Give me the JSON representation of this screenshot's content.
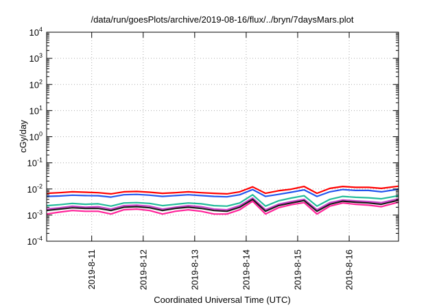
{
  "chart_data": {
    "type": "line",
    "title": "/data/run/goesPlots/archive/2019-08-16/flux/../bryn/7daysMars.plot",
    "xlabel": "Coordinated Universal Time (UTC)",
    "ylabel": "cGy/day",
    "yscale": "log",
    "ylim": [
      0.0001,
      10000
    ],
    "y_ticks": [
      {
        "base": "10",
        "exp": "-4"
      },
      {
        "base": "10",
        "exp": "-3"
      },
      {
        "base": "10",
        "exp": "-2"
      },
      {
        "base": "10",
        "exp": "-1"
      },
      {
        "base": "10",
        "exp": "0"
      },
      {
        "base": "10",
        "exp": "1"
      },
      {
        "base": "10",
        "exp": "2"
      },
      {
        "base": "10",
        "exp": "3"
      },
      {
        "base": "10",
        "exp": "4"
      }
    ],
    "x_range": [
      "2019-08-10 03:00",
      "2019-08-16 23:00"
    ],
    "x_ticks": [
      "2019-8-11",
      "2019-8-12",
      "2019-8-13",
      "2019-8-14",
      "2019-8-15",
      "2019-8-16"
    ],
    "grid": true,
    "legend": "none",
    "x": [
      "2019-08-10 03:00",
      "2019-08-10 09:00",
      "2019-08-10 15:00",
      "2019-08-10 21:00",
      "2019-08-11 03:00",
      "2019-08-11 09:00",
      "2019-08-11 15:00",
      "2019-08-11 21:00",
      "2019-08-12 03:00",
      "2019-08-12 09:00",
      "2019-08-12 15:00",
      "2019-08-12 21:00",
      "2019-08-13 03:00",
      "2019-08-13 09:00",
      "2019-08-13 15:00",
      "2019-08-13 21:00",
      "2019-08-14 03:00",
      "2019-08-14 09:00",
      "2019-08-14 15:00",
      "2019-08-14 21:00",
      "2019-08-15 03:00",
      "2019-08-15 09:00",
      "2019-08-15 15:00",
      "2019-08-15 21:00",
      "2019-08-16 03:00",
      "2019-08-16 09:00",
      "2019-08-16 15:00",
      "2019-08-16 23:00"
    ],
    "series": [
      {
        "color": "#ff0000",
        "values": [
          0.0068,
          0.0072,
          0.0078,
          0.0075,
          0.0072,
          0.0065,
          0.0078,
          0.008,
          0.0075,
          0.0068,
          0.0072,
          0.0078,
          0.0072,
          0.0068,
          0.0065,
          0.0078,
          0.012,
          0.0068,
          0.0085,
          0.0098,
          0.0125,
          0.0068,
          0.0105,
          0.0125,
          0.0115,
          0.0115,
          0.0105,
          0.0128
        ]
      },
      {
        "color": "#2255ee",
        "values": [
          0.0052,
          0.0054,
          0.0058,
          0.0056,
          0.0055,
          0.0049,
          0.006,
          0.0062,
          0.0058,
          0.0052,
          0.0056,
          0.006,
          0.0056,
          0.0052,
          0.005,
          0.006,
          0.0095,
          0.0052,
          0.0062,
          0.0075,
          0.0092,
          0.0052,
          0.0078,
          0.0095,
          0.0088,
          0.0088,
          0.0078,
          0.0098
        ]
      },
      {
        "color": "#22bb99",
        "values": [
          0.0023,
          0.0025,
          0.0028,
          0.0026,
          0.0027,
          0.0022,
          0.0029,
          0.003,
          0.0028,
          0.0023,
          0.0026,
          0.0029,
          0.0027,
          0.0023,
          0.0022,
          0.0029,
          0.006,
          0.0022,
          0.0035,
          0.0045,
          0.0055,
          0.0022,
          0.004,
          0.0052,
          0.0048,
          0.0046,
          0.0042,
          0.0055
        ]
      },
      {
        "color": "#cc44cc",
        "values": [
          0.0017,
          0.0019,
          0.0022,
          0.002,
          0.0021,
          0.0017,
          0.0023,
          0.0024,
          0.0022,
          0.0017,
          0.002,
          0.0023,
          0.0021,
          0.0017,
          0.0016,
          0.0023,
          0.0045,
          0.0016,
          0.0026,
          0.0033,
          0.004,
          0.0016,
          0.003,
          0.0038,
          0.0035,
          0.0033,
          0.003,
          0.0042
        ]
      },
      {
        "color": "#1a1a1a",
        "values": [
          0.0015,
          0.0017,
          0.0019,
          0.0018,
          0.0018,
          0.0015,
          0.002,
          0.0021,
          0.0019,
          0.0015,
          0.0018,
          0.002,
          0.0018,
          0.0015,
          0.0014,
          0.002,
          0.004,
          0.0014,
          0.0023,
          0.0029,
          0.0036,
          0.0014,
          0.0026,
          0.0034,
          0.0031,
          0.0029,
          0.0026,
          0.0037
        ]
      },
      {
        "color": "#ff2299",
        "values": [
          0.0011,
          0.0013,
          0.0015,
          0.0014,
          0.0014,
          0.0011,
          0.0016,
          0.0017,
          0.0015,
          0.0011,
          0.0014,
          0.0016,
          0.0014,
          0.0011,
          0.0011,
          0.0016,
          0.0034,
          0.0011,
          0.0019,
          0.0025,
          0.003,
          0.0011,
          0.0022,
          0.0029,
          0.0026,
          0.0024,
          0.0021,
          0.0031
        ]
      }
    ]
  }
}
